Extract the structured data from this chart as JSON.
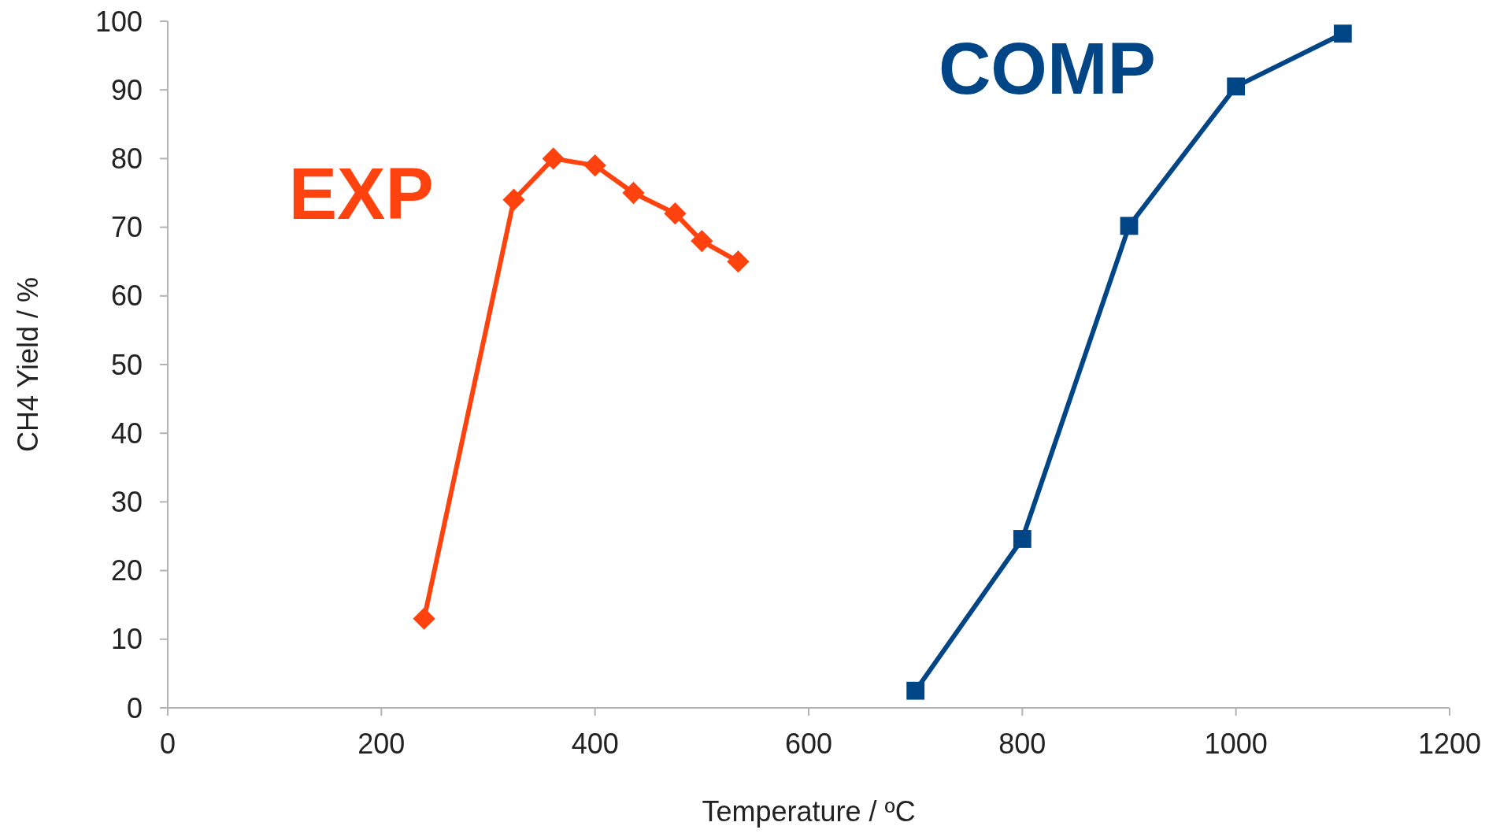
{
  "chart_data": {
    "type": "line",
    "xlabel": "Temperature / ºC",
    "ylabel": "CH4 Yield / %",
    "xlim": [
      0,
      1200
    ],
    "xticks": [
      0,
      200,
      400,
      600,
      800,
      1000,
      1200
    ],
    "ylim": [
      0,
      100
    ],
    "yticks": [
      0,
      10,
      20,
      30,
      40,
      50,
      60,
      70,
      80,
      90,
      100
    ],
    "grid": false,
    "series": [
      {
        "name": "EXP",
        "color": "#ff420e",
        "marker": "diamond",
        "x": [
          240,
          324,
          361,
          400,
          436,
          475,
          500,
          534
        ],
        "values": [
          13,
          74,
          80,
          79,
          75,
          72,
          68,
          65
        ]
      },
      {
        "name": "COMP",
        "color": "#004586",
        "marker": "square",
        "x": [
          700,
          800,
          900,
          1000,
          1100
        ],
        "values": [
          2.5,
          24.6,
          70.2,
          90.5,
          98.2
        ]
      }
    ]
  }
}
